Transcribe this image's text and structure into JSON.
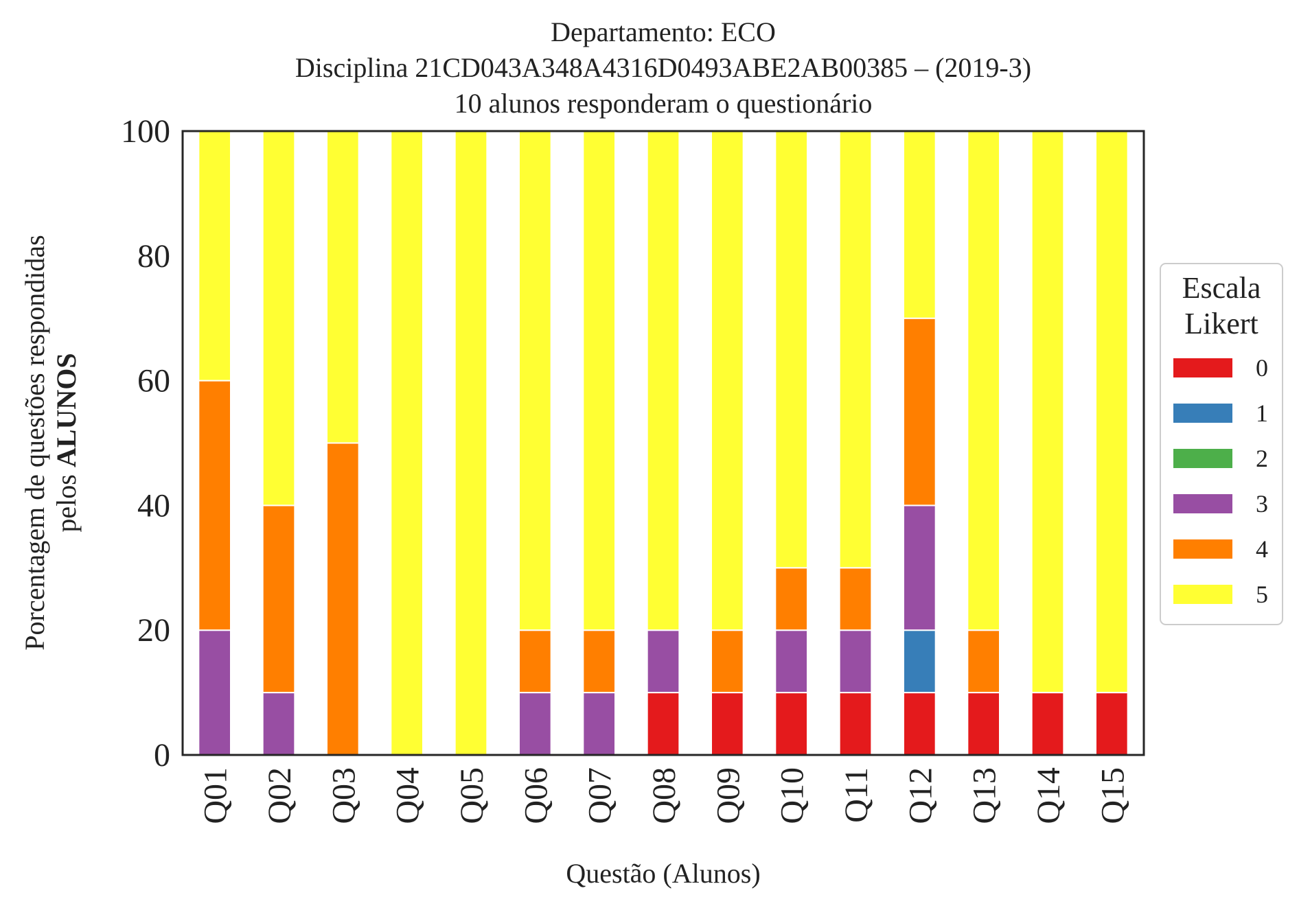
{
  "chart_data": {
    "type": "bar",
    "stacked": true,
    "title_lines": [
      "Departamento: ECO",
      "Disciplina 21CD043A348A4316D0493ABE2AB00385 – (2019-3)",
      "10 alunos responderam o questionário"
    ],
    "xlabel": "Questão (Alunos)",
    "ylabel_line1": "Porcentagem de questões respondidas",
    "ylabel_line2_prefix": "pelos ",
    "ylabel_line2_bold": "ALUNOS",
    "ylim": [
      0,
      100
    ],
    "yticks": [
      "0",
      "20",
      "40",
      "60",
      "80",
      "100"
    ],
    "categories": [
      "Q01",
      "Q02",
      "Q03",
      "Q04",
      "Q05",
      "Q06",
      "Q07",
      "Q08",
      "Q09",
      "Q10",
      "Q11",
      "Q12",
      "Q13",
      "Q14",
      "Q15"
    ],
    "legend": {
      "title_lines": [
        "Escala",
        "Likert"
      ],
      "position": "right-center"
    },
    "series": [
      {
        "name": "0",
        "color": "#e41a1c",
        "values": [
          0,
          0,
          0,
          0,
          0,
          0,
          0,
          10,
          10,
          10,
          10,
          10,
          10,
          10,
          10
        ]
      },
      {
        "name": "1",
        "color": "#377eb8",
        "values": [
          0,
          0,
          0,
          0,
          0,
          0,
          0,
          0,
          0,
          0,
          0,
          10,
          0,
          0,
          0
        ]
      },
      {
        "name": "2",
        "color": "#4daf4a",
        "values": [
          0,
          0,
          0,
          0,
          0,
          0,
          0,
          0,
          0,
          0,
          0,
          0,
          0,
          0,
          0
        ]
      },
      {
        "name": "3",
        "color": "#984ea3",
        "values": [
          20,
          10,
          0,
          0,
          0,
          10,
          10,
          10,
          0,
          10,
          10,
          20,
          0,
          0,
          0
        ]
      },
      {
        "name": "4",
        "color": "#ff7f00",
        "values": [
          40,
          30,
          50,
          0,
          0,
          10,
          10,
          0,
          10,
          10,
          10,
          30,
          10,
          0,
          0
        ]
      },
      {
        "name": "5",
        "color": "#ffff33",
        "values": [
          40,
          60,
          50,
          100,
          100,
          80,
          80,
          80,
          80,
          70,
          70,
          30,
          80,
          90,
          90
        ]
      }
    ]
  }
}
